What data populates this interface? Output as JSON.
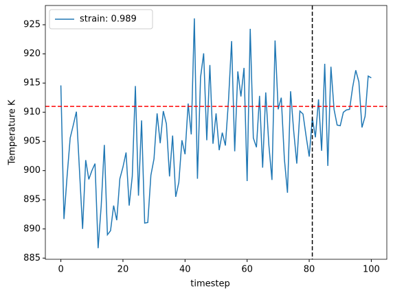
{
  "chart_data": {
    "type": "line",
    "x_label": "timestep",
    "y_label": "Temperature K",
    "x": [
      0,
      1,
      2,
      3,
      4,
      5,
      6,
      7,
      8,
      9,
      10,
      11,
      12,
      13,
      14,
      15,
      16,
      17,
      18,
      19,
      20,
      21,
      22,
      23,
      24,
      25,
      26,
      27,
      28,
      29,
      30,
      31,
      32,
      33,
      34,
      35,
      36,
      37,
      38,
      39,
      40,
      41,
      42,
      43,
      44,
      45,
      46,
      47,
      48,
      49,
      50,
      51,
      52,
      53,
      54,
      55,
      56,
      57,
      58,
      59,
      60,
      61,
      62,
      63,
      64,
      65,
      66,
      67,
      68,
      69,
      70,
      71,
      72,
      73,
      74,
      75,
      76,
      77,
      78,
      79,
      80,
      81,
      82,
      83,
      84,
      85,
      86,
      87,
      88,
      89,
      90,
      91,
      92,
      93,
      94,
      95,
      96,
      97,
      98,
      99,
      100
    ],
    "series": [
      {
        "name": "strain: 0.989",
        "color": "#1f77b4",
        "values": [
          914.6,
          891.7,
          899,
          905.6,
          907.8,
          910.1,
          900,
          890,
          901.8,
          898.5,
          900,
          901.2,
          886.7,
          894,
          904.4,
          889,
          889.7,
          894,
          891.5,
          898.6,
          900.6,
          903.1,
          894,
          899,
          914.5,
          895.7,
          908.6,
          891,
          891.1,
          899.2,
          902,
          909.8,
          904.7,
          910.2,
          908,
          899,
          906,
          895.5,
          898,
          905.2,
          902.8,
          911.5,
          906.2,
          926.1,
          898.6,
          916,
          920.1,
          905.2,
          918.1,
          904.6,
          909.8,
          903.5,
          906.5,
          904.3,
          912,
          922.2,
          903.3,
          917,
          912.7,
          917.6,
          898.2,
          924.3,
          905.6,
          904,
          912.8,
          900.5,
          913.4,
          904.4,
          898.4,
          922.3,
          910.5,
          912.5,
          902,
          896.2,
          913.6,
          906.8,
          901.2,
          910.2,
          909.7,
          905.9,
          902.4,
          909,
          905.7,
          912.2,
          903.4,
          918.3,
          900.8,
          917.8,
          910.5,
          907.8,
          907.7,
          910,
          910.4,
          910.5,
          914.3,
          917.2,
          915.2,
          907.4,
          909.3,
          916.2,
          915.9
        ]
      }
    ],
    "hline": {
      "value": 911,
      "color": "#ff0000"
    },
    "vline": {
      "value": 81,
      "color": "#000000"
    },
    "xlim": [
      -5,
      105
    ],
    "xticks": [
      0,
      20,
      40,
      60,
      80,
      100
    ],
    "ylim": [
      884.8,
      928.3
    ],
    "yticks": [
      885,
      890,
      895,
      900,
      905,
      910,
      915,
      920,
      925
    ],
    "legend": "upper left",
    "grid": false
  }
}
